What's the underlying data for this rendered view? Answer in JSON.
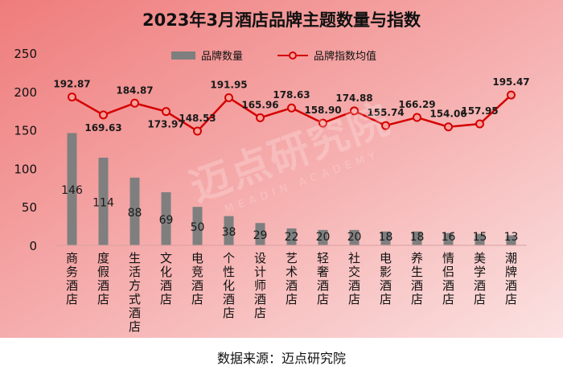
{
  "chart_data": {
    "type": "bar",
    "title": "2023年3月酒店品牌主题数量与指数",
    "categories": [
      "商务酒店",
      "度假酒店",
      "生活方式酒店",
      "文化酒店",
      "电竞酒店",
      "个性化酒店",
      "设计师酒店",
      "艺术酒店",
      "轻奢酒店",
      "社交酒店",
      "电影酒店",
      "养生酒店",
      "情侣酒店",
      "美学酒店",
      "潮牌酒店"
    ],
    "ylim": [
      0,
      250
    ],
    "yticks": [
      0,
      50,
      100,
      150,
      200,
      250
    ],
    "legend_position": "top-center",
    "grid": false,
    "series": [
      {
        "name": "品牌数量",
        "kind": "bar",
        "color": "#7f7f7f",
        "values": [
          146,
          114,
          88,
          69,
          50,
          38,
          29,
          22,
          20,
          20,
          18,
          18,
          16,
          15,
          13
        ]
      },
      {
        "name": "品牌指数均值",
        "kind": "line",
        "color": "#d40000",
        "values": [
          192.87,
          169.63,
          184.87,
          173.97,
          148.53,
          191.95,
          165.96,
          178.63,
          158.9,
          174.88,
          155.74,
          166.29,
          154.06,
          157.95,
          195.47
        ],
        "labels": [
          "192.87",
          "169.63",
          "184.87",
          "173.97",
          "148.53",
          "191.95",
          "165.96",
          "178.63",
          "158.90",
          "174.88",
          "155.74",
          "166.29",
          "154.06",
          "157.95",
          "195.47"
        ]
      }
    ]
  },
  "watermark": {
    "main": "迈点研究院",
    "sub": "MEADIN ACADEMY"
  },
  "source_note": "数据来源：迈点研究院"
}
